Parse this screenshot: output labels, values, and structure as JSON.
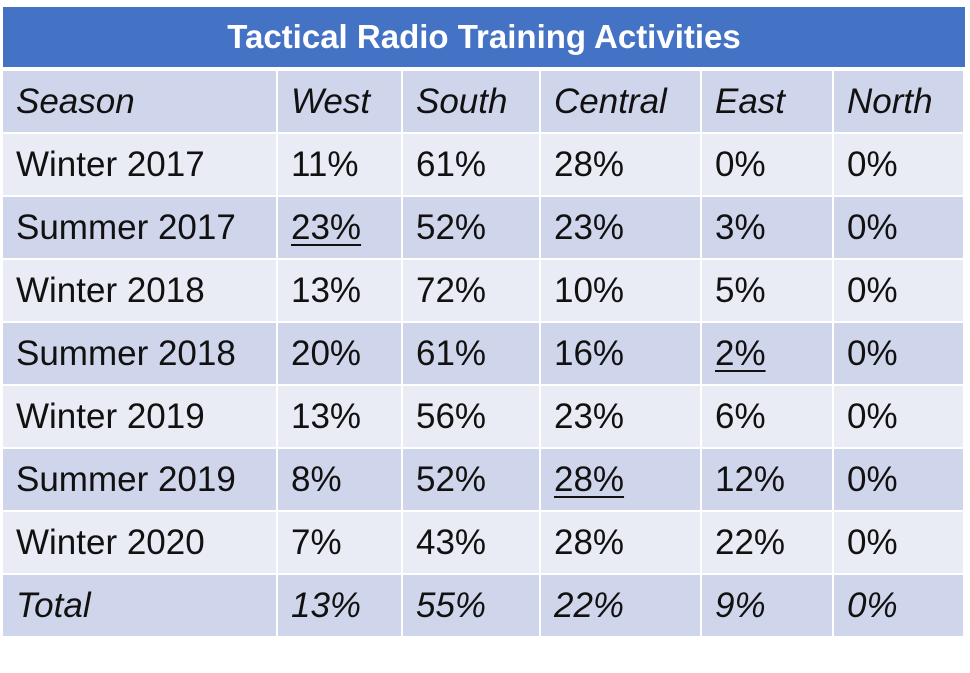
{
  "chart_data": {
    "type": "table",
    "title": "Tactical Radio Training Activities",
    "columns": [
      "Season",
      "West",
      "South",
      "Central",
      "East",
      "North"
    ],
    "rows": [
      {
        "cells": [
          "Winter 2017",
          "11%",
          "61%",
          "28%",
          "0%",
          "0%"
        ],
        "underline": []
      },
      {
        "cells": [
          "Summer 2017",
          "23%",
          "52%",
          "23%",
          "3%",
          "0%"
        ],
        "underline": [
          1
        ]
      },
      {
        "cells": [
          "Winter 2018",
          "13%",
          "72%",
          "10%",
          "5%",
          "0%"
        ],
        "underline": []
      },
      {
        "cells": [
          "Summer 2018",
          "20%",
          "61%",
          "16%",
          "2%",
          "0%"
        ],
        "underline": [
          4
        ]
      },
      {
        "cells": [
          "Winter 2019",
          "13%",
          "56%",
          "23%",
          "6%",
          "0%"
        ],
        "underline": []
      },
      {
        "cells": [
          "Summer 2019",
          "8%",
          "52%",
          "28%",
          "12%",
          "0%"
        ],
        "underline": [
          3
        ]
      },
      {
        "cells": [
          "Winter 2020",
          "7%",
          "43%",
          "28%",
          "22%",
          "0%"
        ],
        "underline": []
      }
    ],
    "total": [
      "Total",
      "13%",
      "55%",
      "22%",
      "9%",
      "0%"
    ],
    "colors": {
      "title_bg": "#4472C4",
      "band_dark": "#CFD5EA",
      "band_light": "#E9EBF5"
    }
  }
}
